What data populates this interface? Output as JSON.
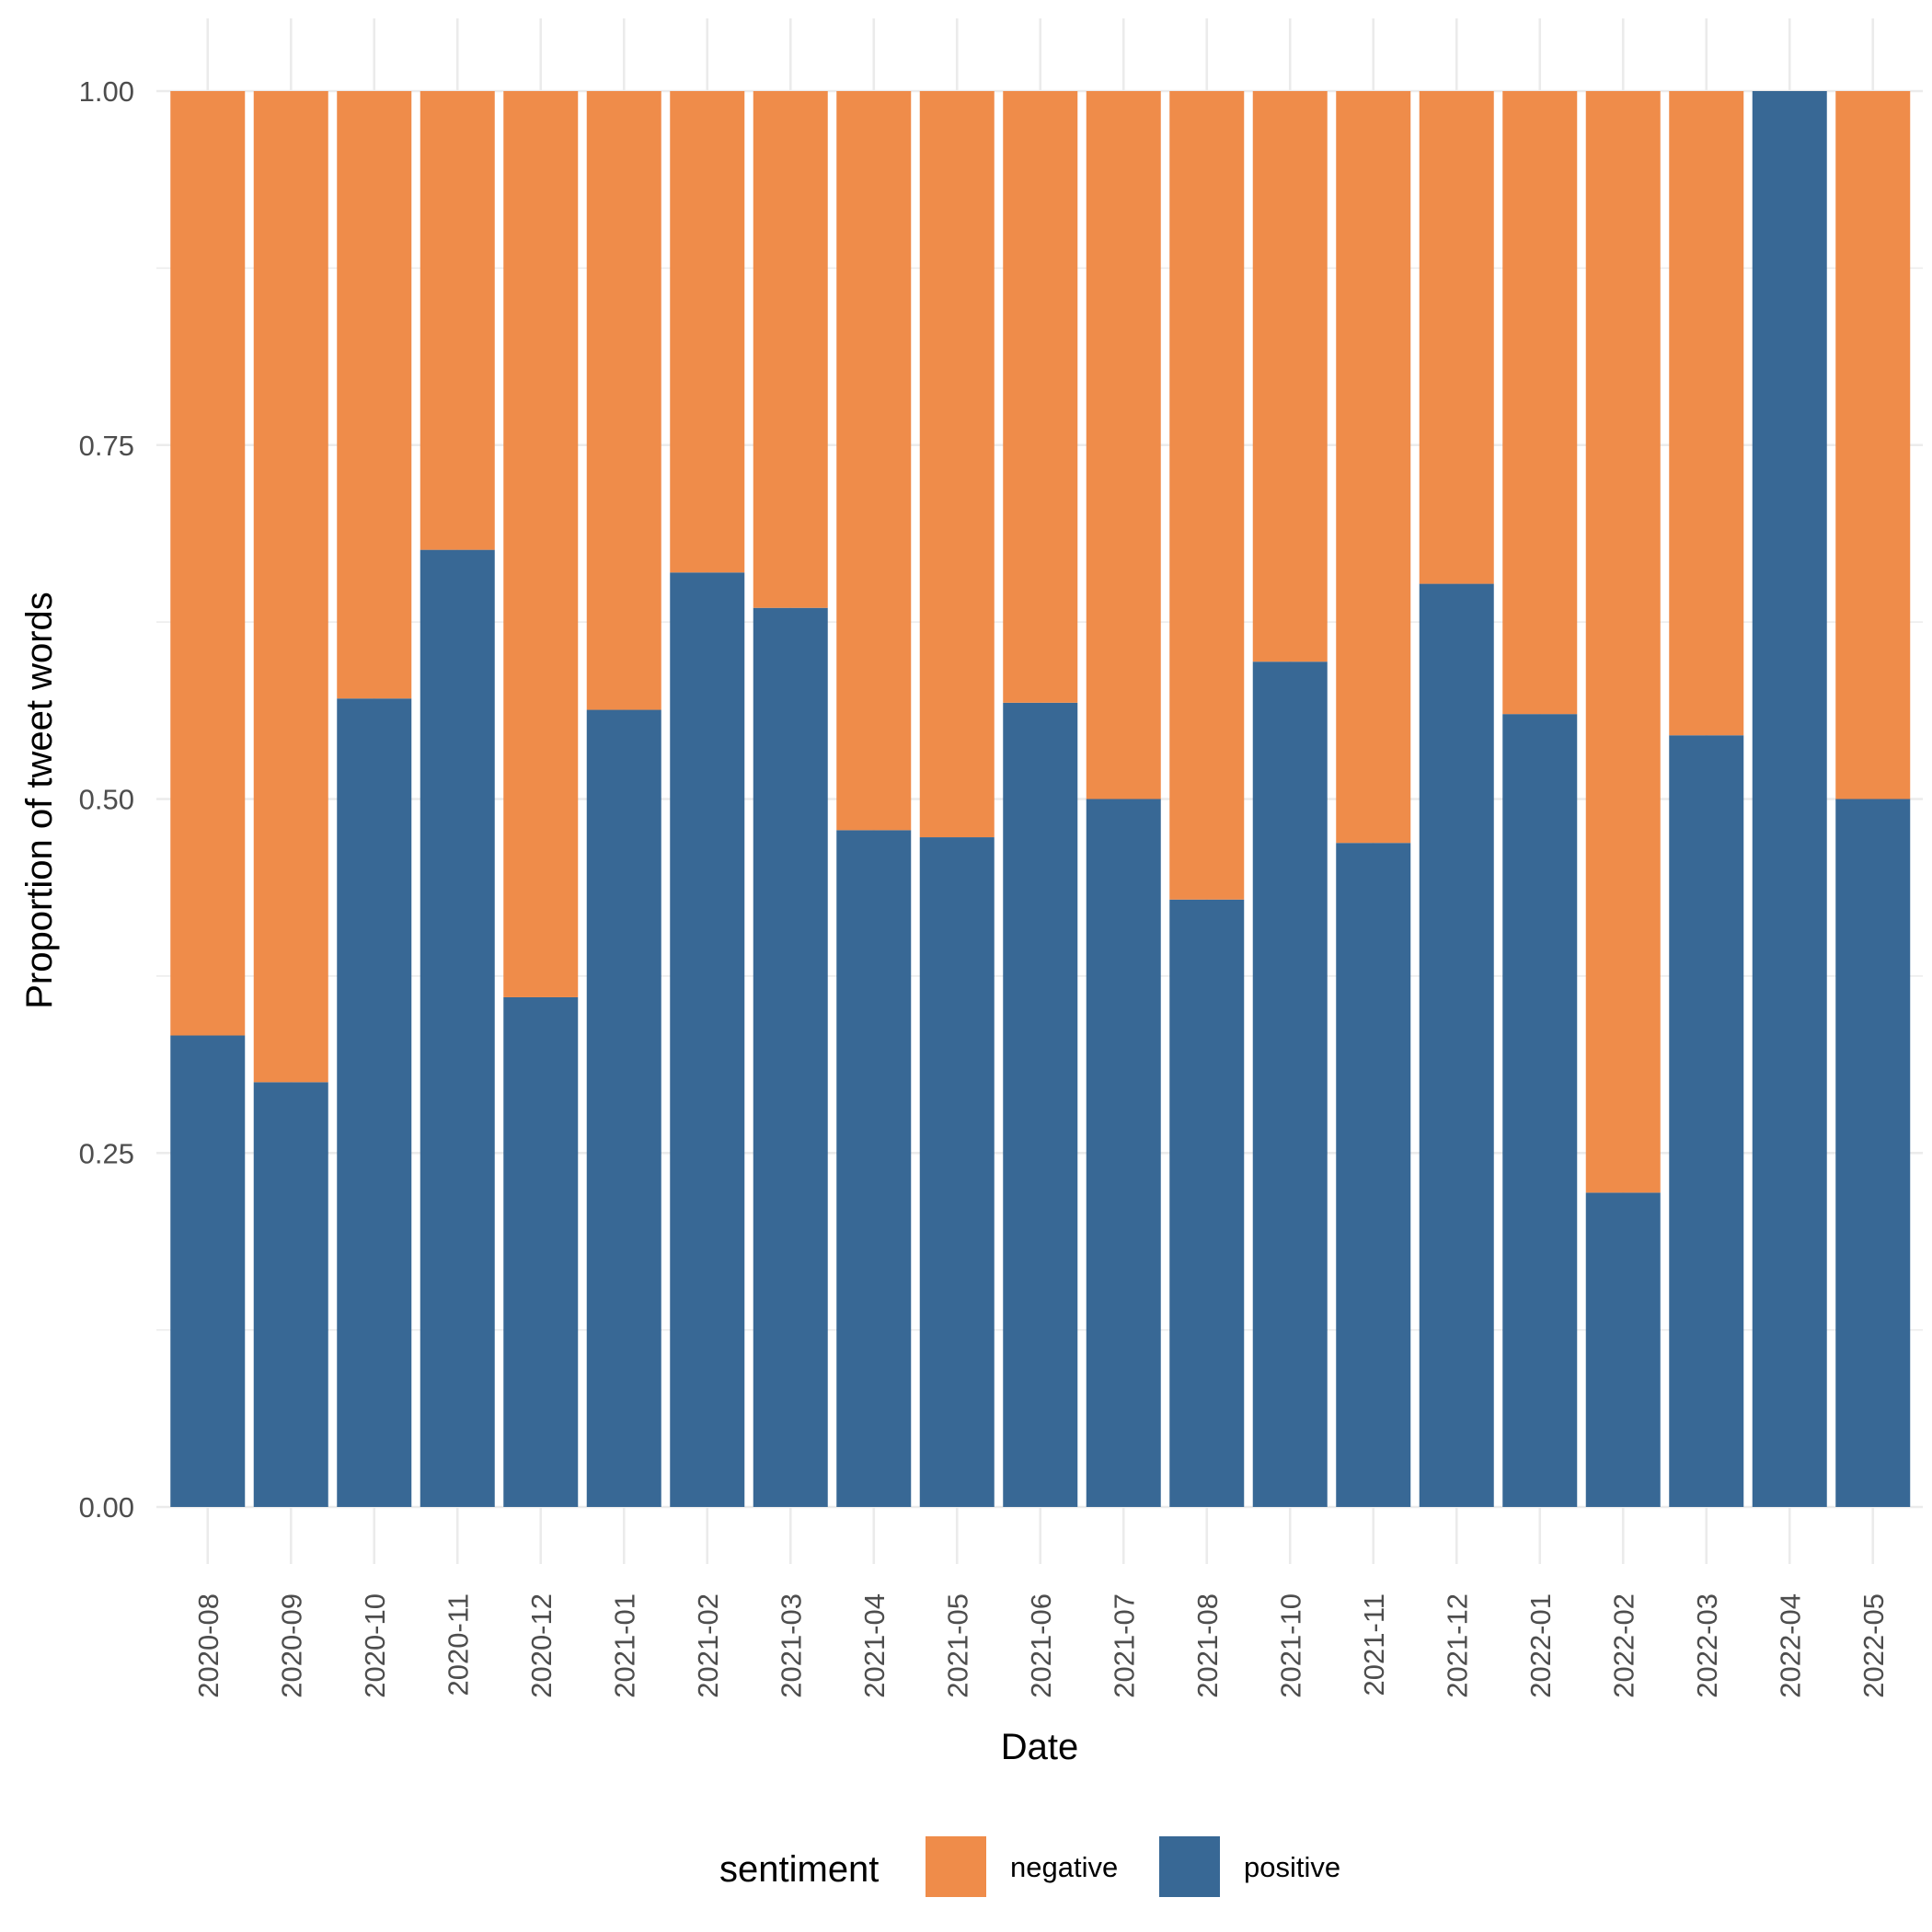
{
  "chart_data": {
    "type": "bar",
    "stacked": true,
    "categories": [
      "2020-08",
      "2020-09",
      "2020-10",
      "2020-11",
      "2020-12",
      "2021-01",
      "2021-02",
      "2021-03",
      "2021-04",
      "2021-05",
      "2021-06",
      "2021-07",
      "2021-08",
      "2021-10",
      "2021-11",
      "2021-12",
      "2022-01",
      "2022-02",
      "2022-03",
      "2022-04",
      "2022-05"
    ],
    "series": [
      {
        "name": "positive",
        "color": "#386895",
        "values": [
          0.333,
          0.3,
          0.571,
          0.676,
          0.36,
          0.563,
          0.66,
          0.635,
          0.478,
          0.473,
          0.568,
          0.5,
          0.429,
          0.597,
          0.469,
          0.652,
          0.56,
          0.222,
          0.545,
          1.0,
          0.5
        ]
      },
      {
        "name": "negative",
        "color": "#EF8C4A",
        "values": [
          0.667,
          0.7,
          0.429,
          0.324,
          0.64,
          0.437,
          0.34,
          0.365,
          0.522,
          0.527,
          0.432,
          0.5,
          0.571,
          0.403,
          0.531,
          0.348,
          0.44,
          0.778,
          0.455,
          0.0,
          0.5
        ]
      }
    ],
    "xlabel": "Date",
    "ylabel": "Proportion of tweet words",
    "ylim": [
      0,
      1
    ],
    "yticks": [
      0,
      0.25,
      0.5,
      0.75,
      1.0
    ],
    "ytick_labels": [
      "0.00",
      "0.25",
      "0.50",
      "0.75",
      "1.00"
    ],
    "grid": true,
    "legend": {
      "title": "sentiment",
      "placement": "bottom",
      "entries": [
        {
          "label": "negative",
          "color": "#EF8C4A"
        },
        {
          "label": "positive",
          "color": "#386895"
        }
      ]
    }
  }
}
